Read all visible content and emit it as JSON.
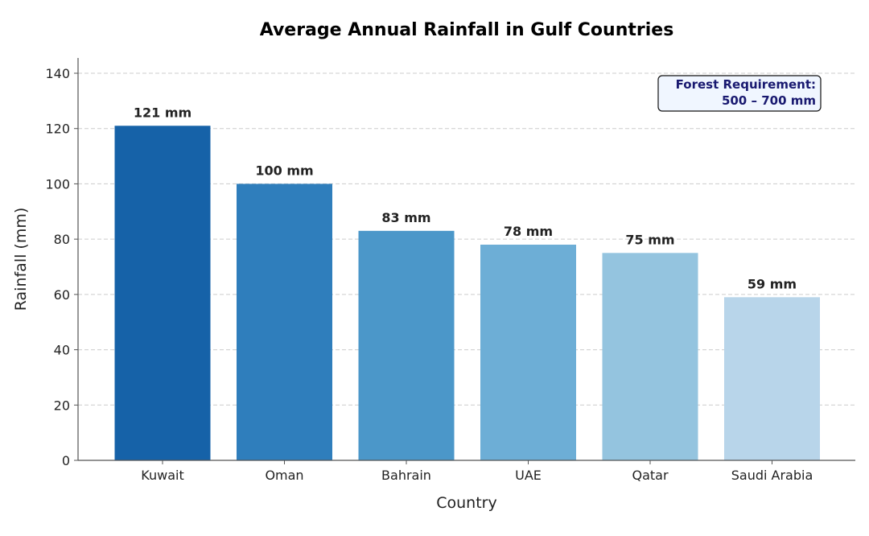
{
  "chart_data": {
    "type": "bar",
    "title": "Average Annual Rainfall in Gulf Countries",
    "xlabel": "Country",
    "ylabel": "Rainfall (mm)",
    "categories": [
      "Kuwait",
      "Oman",
      "Bahrain",
      "UAE",
      "Qatar",
      "Saudi Arabia"
    ],
    "values": [
      121,
      100,
      83,
      78,
      75,
      59
    ],
    "bar_labels": [
      "121 mm",
      "100 mm",
      "83 mm",
      "78 mm",
      "75 mm",
      "59 mm"
    ],
    "bar_colors": [
      "#1662a8",
      "#2f7ebc",
      "#4b97c9",
      "#6daed6",
      "#94c4df",
      "#b8d5ea"
    ],
    "ylim": [
      0,
      145
    ],
    "yticks": [
      0,
      20,
      40,
      60,
      80,
      100,
      120,
      140
    ],
    "grid": true,
    "annotation": {
      "line1": "Forest Requirement:",
      "line2": "500 – 700 mm",
      "position": "top-right"
    }
  }
}
